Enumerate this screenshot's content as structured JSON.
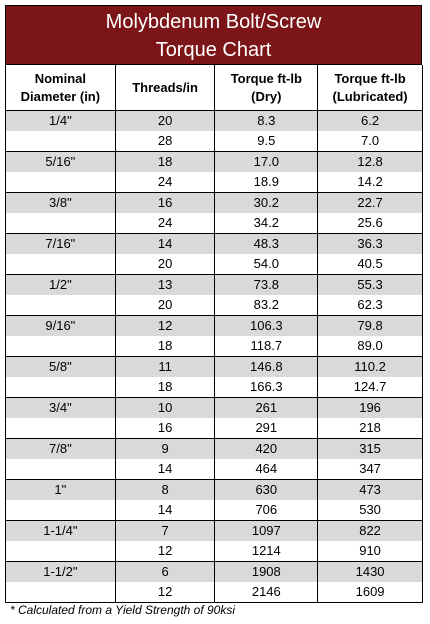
{
  "title": [
    "Molybdenum Bolt/Screw",
    "Torque Chart"
  ],
  "headers": [
    [
      "Nominal",
      "Diameter (in)"
    ],
    [
      "Threads/in"
    ],
    [
      "Torque ft-lb",
      "(Dry)"
    ],
    [
      "Torque ft-lb",
      "(Lubricated)"
    ]
  ],
  "groups": [
    {
      "diameter": "1/4\"",
      "rows": [
        [
          "20",
          "8.3",
          "6.2"
        ],
        [
          "28",
          "9.5",
          "7.0"
        ]
      ]
    },
    {
      "diameter": "5/16\"",
      "rows": [
        [
          "18",
          "17.0",
          "12.8"
        ],
        [
          "24",
          "18.9",
          "14.2"
        ]
      ]
    },
    {
      "diameter": "3/8\"",
      "rows": [
        [
          "16",
          "30.2",
          "22.7"
        ],
        [
          "24",
          "34.2",
          "25.6"
        ]
      ]
    },
    {
      "diameter": "7/16\"",
      "rows": [
        [
          "14",
          "48.3",
          "36.3"
        ],
        [
          "20",
          "54.0",
          "40.5"
        ]
      ]
    },
    {
      "diameter": "1/2\"",
      "rows": [
        [
          "13",
          "73.8",
          "55.3"
        ],
        [
          "20",
          "83.2",
          "62.3"
        ]
      ]
    },
    {
      "diameter": "9/16\"",
      "rows": [
        [
          "12",
          "106.3",
          "79.8"
        ],
        [
          "18",
          "118.7",
          "89.0"
        ]
      ]
    },
    {
      "diameter": "5/8\"",
      "rows": [
        [
          "11",
          "146.8",
          "110.2"
        ],
        [
          "18",
          "166.3",
          "124.7"
        ]
      ]
    },
    {
      "diameter": "3/4\"",
      "rows": [
        [
          "10",
          "261",
          "196"
        ],
        [
          "16",
          "291",
          "218"
        ]
      ]
    },
    {
      "diameter": "7/8\"",
      "rows": [
        [
          "9",
          "420",
          "315"
        ],
        [
          "14",
          "464",
          "347"
        ]
      ]
    },
    {
      "diameter": "1\"",
      "rows": [
        [
          "8",
          "630",
          "473"
        ],
        [
          "14",
          "706",
          "530"
        ]
      ]
    },
    {
      "diameter": "1-1/4\"",
      "rows": [
        [
          "7",
          "1097",
          "822"
        ],
        [
          "12",
          "1214",
          "910"
        ]
      ]
    },
    {
      "diameter": "1-1/2\"",
      "rows": [
        [
          "6",
          "1908",
          "1430"
        ],
        [
          "12",
          "2146",
          "1609"
        ]
      ]
    }
  ],
  "footnote": "* Calculated from a Yield Strength of 90ksi"
}
